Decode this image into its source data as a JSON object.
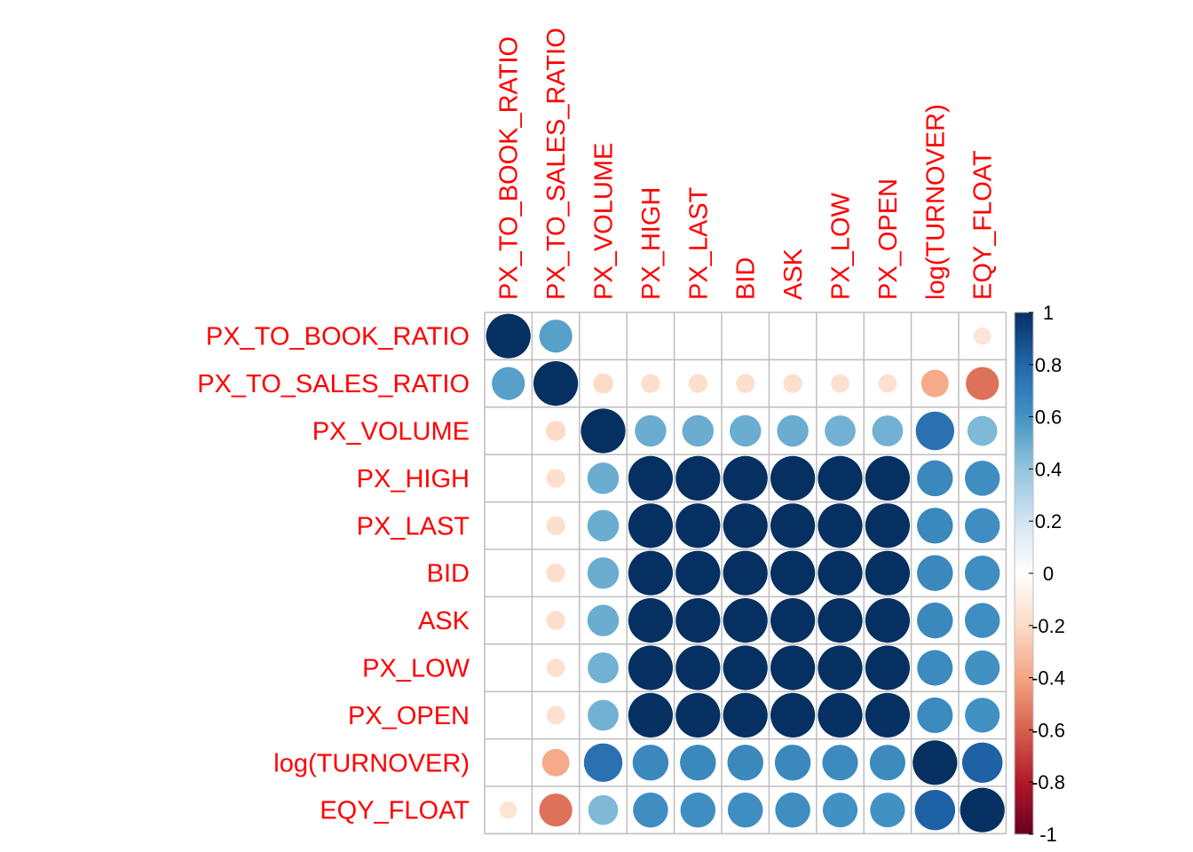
{
  "chart_data": {
    "type": "heatmap",
    "variables": [
      "PX_TO_BOOK_RATIO",
      "PX_TO_SALES_RATIO",
      "PX_VOLUME",
      "PX_HIGH",
      "PX_LAST",
      "BID",
      "ASK",
      "PX_LOW",
      "PX_OPEN",
      "log(TURNOVER)",
      "EQY_FLOAT"
    ],
    "matrix": [
      [
        1.0,
        0.55,
        0.01,
        0.01,
        0.01,
        0.01,
        0.01,
        0.01,
        0.01,
        0.0,
        -0.15
      ],
      [
        0.55,
        1.0,
        -0.2,
        -0.18,
        -0.18,
        -0.18,
        -0.18,
        -0.17,
        -0.17,
        -0.38,
        -0.55
      ],
      [
        0.01,
        -0.2,
        1.0,
        0.5,
        0.5,
        0.5,
        0.5,
        0.48,
        0.48,
        0.75,
        0.45
      ],
      [
        0.01,
        -0.18,
        0.5,
        1.0,
        1.0,
        1.0,
        1.0,
        1.0,
        1.0,
        0.65,
        0.62
      ],
      [
        0.01,
        -0.18,
        0.5,
        1.0,
        1.0,
        1.0,
        1.0,
        1.0,
        1.0,
        0.65,
        0.62
      ],
      [
        0.01,
        -0.18,
        0.5,
        1.0,
        1.0,
        1.0,
        1.0,
        1.0,
        1.0,
        0.65,
        0.62
      ],
      [
        0.01,
        -0.18,
        0.5,
        1.0,
        1.0,
        1.0,
        1.0,
        1.0,
        1.0,
        0.65,
        0.62
      ],
      [
        0.01,
        -0.17,
        0.48,
        1.0,
        1.0,
        1.0,
        1.0,
        1.0,
        1.0,
        0.64,
        0.61
      ],
      [
        0.01,
        -0.17,
        0.48,
        1.0,
        1.0,
        1.0,
        1.0,
        1.0,
        1.0,
        0.64,
        0.61
      ],
      [
        0.0,
        -0.38,
        0.75,
        0.65,
        0.65,
        0.65,
        0.65,
        0.64,
        0.64,
        1.0,
        0.82
      ],
      [
        -0.15,
        -0.55,
        0.45,
        0.62,
        0.62,
        0.62,
        0.62,
        0.61,
        0.61,
        0.82,
        1.0
      ]
    ],
    "colorbar": {
      "ticks": [
        "1",
        "0.8",
        "0.6",
        "0.4",
        "0.2",
        "0",
        "-0.2",
        "-0.4",
        "-0.6",
        "-0.8",
        "-1"
      ],
      "range": [
        -1,
        1
      ],
      "colors": [
        "#67001F",
        "#B2182B",
        "#D6604D",
        "#F4A582",
        "#FDDBC7",
        "#FFFFFF",
        "#D1E5F0",
        "#92C5DE",
        "#4393C3",
        "#2166AC",
        "#053061"
      ]
    },
    "label_color": "#ff0000",
    "grid_color": "#bebebe",
    "title": "",
    "xlabel": "",
    "ylabel": ""
  }
}
